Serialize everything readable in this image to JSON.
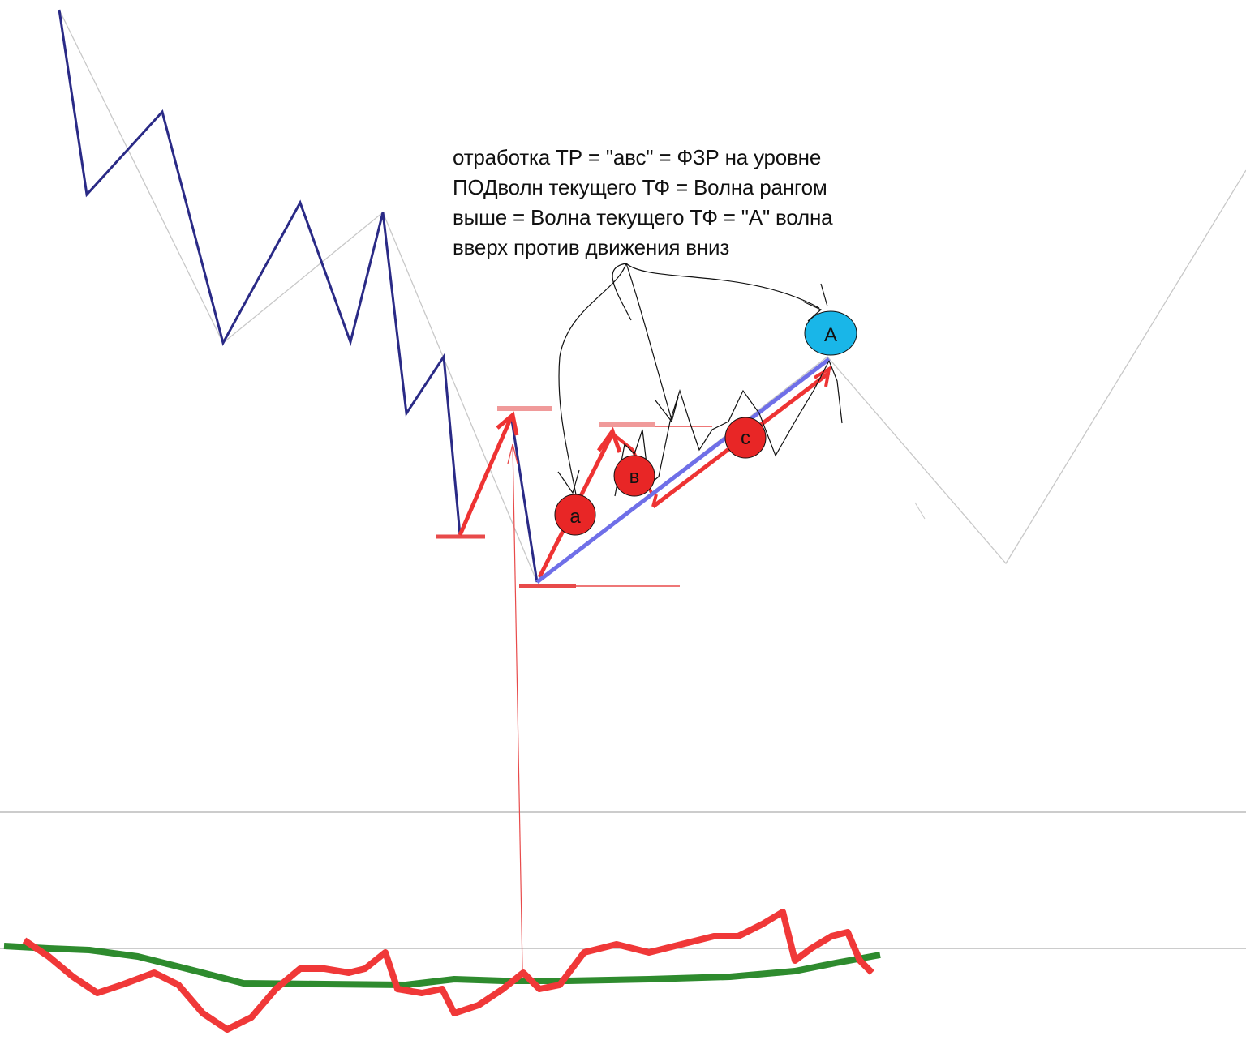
{
  "chart_data": {
    "type": "line",
    "title": "",
    "annotation_lines": [
      "отработка ТР = \"авс\" = ФЗР на уровне",
      "ПОДволн текущего ТФ = Волна рангом",
      "выше = Волна текущего ТФ = \"А\" волна",
      "вверх против движения вниз"
    ],
    "wave_labels": {
      "a": "a",
      "b": "в",
      "c": "c",
      "A": "A"
    },
    "colors": {
      "price_zigzag": "#2a2a86",
      "higher_tf_zigzag": "#c8c8c8",
      "wave_arrows": "#ee3333",
      "wave_A_line": "#6f6fe8",
      "levels": "#e84a4a",
      "oscillator_fast": "#f03838",
      "oscillator_slow": "#2e8b2e",
      "label_red": "#e82626",
      "label_blue": "#19b6e8"
    },
    "series": [
      {
        "type": "price-zigzag",
        "points": [
          [
            73,
            12
          ],
          [
            107,
            240
          ],
          [
            200,
            138
          ],
          [
            275,
            423
          ],
          [
            370,
            250
          ],
          [
            432,
            422
          ],
          [
            472,
            262
          ],
          [
            501,
            510
          ],
          [
            547,
            440
          ],
          [
            567,
            660
          ]
        ]
      },
      {
        "type": "price-zigzag-2",
        "points": [
          [
            630,
            512
          ],
          [
            662,
            718
          ]
        ]
      },
      {
        "type": "higher-tf-zigzag",
        "points": [
          [
            73,
            12
          ],
          [
            275,
            423
          ],
          [
            472,
            262
          ],
          [
            662,
            718
          ],
          [
            1020,
            440
          ],
          [
            1240,
            695
          ],
          [
            1536,
            210
          ]
        ]
      },
      {
        "type": "oscillator-fast",
        "points": [
          [
            30,
            1160
          ],
          [
            60,
            1180
          ],
          [
            90,
            1205
          ],
          [
            120,
            1225
          ],
          [
            150,
            1215
          ],
          [
            190,
            1200
          ],
          [
            220,
            1215
          ],
          [
            250,
            1250
          ],
          [
            280,
            1270
          ],
          [
            310,
            1255
          ],
          [
            340,
            1220
          ],
          [
            370,
            1195
          ],
          [
            400,
            1195
          ],
          [
            430,
            1200
          ],
          [
            450,
            1195
          ],
          [
            475,
            1175
          ],
          [
            490,
            1220
          ],
          [
            520,
            1225
          ],
          [
            545,
            1220
          ],
          [
            560,
            1250
          ],
          [
            590,
            1240
          ],
          [
            620,
            1220
          ],
          [
            645,
            1200
          ],
          [
            665,
            1220
          ],
          [
            690,
            1215
          ],
          [
            720,
            1175
          ],
          [
            760,
            1165
          ],
          [
            800,
            1175
          ],
          [
            840,
            1165
          ],
          [
            880,
            1155
          ],
          [
            910,
            1155
          ],
          [
            940,
            1140
          ],
          [
            965,
            1125
          ],
          [
            980,
            1185
          ],
          [
            1000,
            1170
          ],
          [
            1025,
            1155
          ],
          [
            1045,
            1150
          ],
          [
            1060,
            1185
          ],
          [
            1075,
            1200
          ]
        ]
      },
      {
        "type": "oscillator-slow",
        "points": [
          [
            5,
            1167
          ],
          [
            60,
            1170
          ],
          [
            110,
            1172
          ],
          [
            170,
            1180
          ],
          [
            230,
            1195
          ],
          [
            300,
            1213
          ],
          [
            400,
            1214
          ],
          [
            500,
            1215
          ],
          [
            560,
            1208
          ],
          [
            620,
            1210
          ],
          [
            700,
            1210
          ],
          [
            800,
            1208
          ],
          [
            900,
            1205
          ],
          [
            980,
            1198
          ],
          [
            1030,
            1188
          ],
          [
            1085,
            1178
          ]
        ]
      }
    ],
    "levels": [
      {
        "kind": "support",
        "y_pixel_role": "low-1"
      },
      {
        "kind": "resistance",
        "y_pixel_role": "high-1"
      },
      {
        "kind": "resistance",
        "y_pixel_role": "high-2"
      },
      {
        "kind": "support",
        "y_pixel_role": "low-2"
      }
    ],
    "grid": false,
    "legend": "none"
  }
}
